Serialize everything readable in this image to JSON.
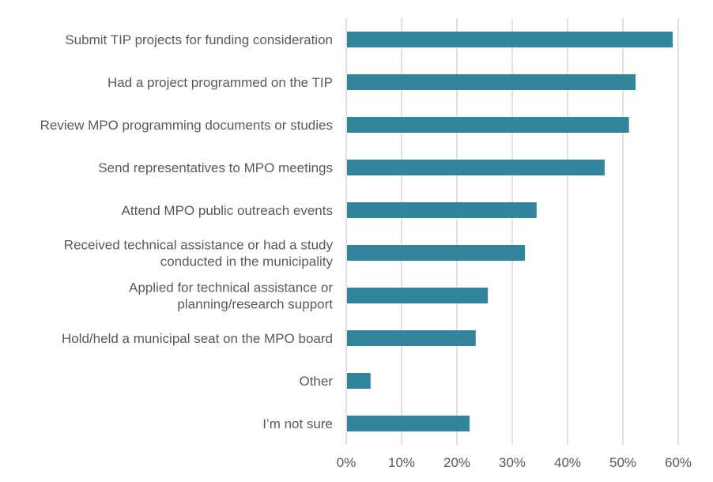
{
  "chart_data": {
    "type": "bar",
    "orientation": "horizontal",
    "title": "",
    "xlabel": "",
    "ylabel": "",
    "xlim": [
      0,
      60
    ],
    "grid": true,
    "legend": "none",
    "bar_color": "#32859c",
    "categories": [
      [
        "Submit TIP projects for funding consideration"
      ],
      [
        "Had a project programmed on the TIP"
      ],
      [
        "Review MPO programming documents or studies"
      ],
      [
        "Send representatives to MPO meetings"
      ],
      [
        "Attend MPO public outreach events"
      ],
      [
        "Received technical assistance or had a study",
        "conducted in the municipality"
      ],
      [
        "Applied for technical assistance or",
        "planning/research support"
      ],
      [
        "Hold/held a municipal seat on the MPO board"
      ],
      [
        "Other"
      ],
      [
        "I’m not sure"
      ]
    ],
    "values": [
      59.0,
      52.3,
      51.1,
      46.7,
      34.4,
      32.3,
      25.6,
      23.4,
      4.4,
      22.3
    ],
    "ticks": [
      "0%",
      "10%",
      "20%",
      "30%",
      "40%",
      "50%",
      "60%"
    ]
  }
}
